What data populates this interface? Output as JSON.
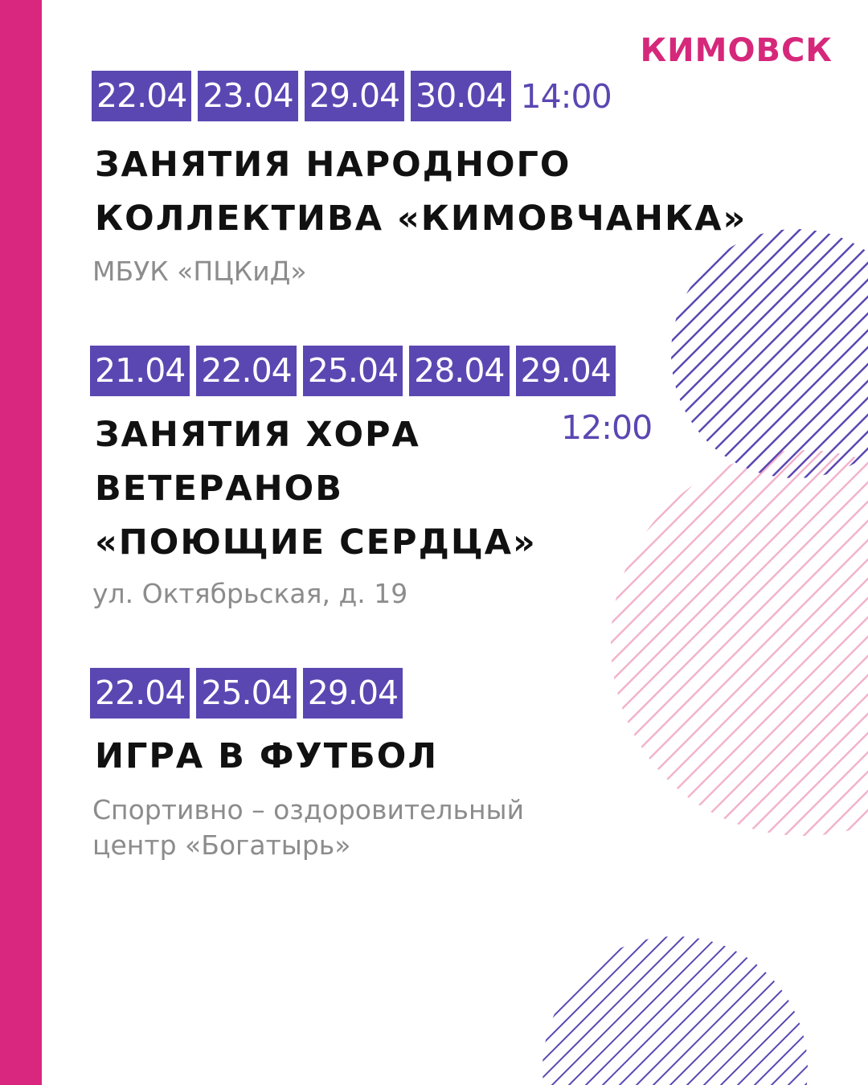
{
  "logo": "КИМОВСК",
  "colors": {
    "accent_pink": "#d9267f",
    "accent_purple": "#5b47b2",
    "text": "#111111",
    "muted": "#8c8c8c"
  },
  "events": [
    {
      "dates": [
        "22.04",
        "23.04",
        "29.04",
        "30.04"
      ],
      "time": "14:00",
      "title_lines": [
        "Занятия народного",
        "коллектива «Кимовчанка»"
      ],
      "place_lines": [
        "МБУК «ПЦКиД»"
      ]
    },
    {
      "dates": [
        "21.04",
        "22.04",
        "25.04",
        "28.04",
        "29.04"
      ],
      "time": "12:00",
      "title_lines": [
        "Занятия хора",
        "ветеранов",
        "«Поющие сердца»"
      ],
      "place_lines": [
        "ул. Октябрьская, д. 19"
      ]
    },
    {
      "dates": [
        "22.04",
        "25.04",
        "29.04"
      ],
      "title_lines": [
        "Игра в футбол"
      ],
      "place_lines": [
        "Спортивно – оздоровительный",
        "центр «Богатырь»"
      ]
    }
  ]
}
